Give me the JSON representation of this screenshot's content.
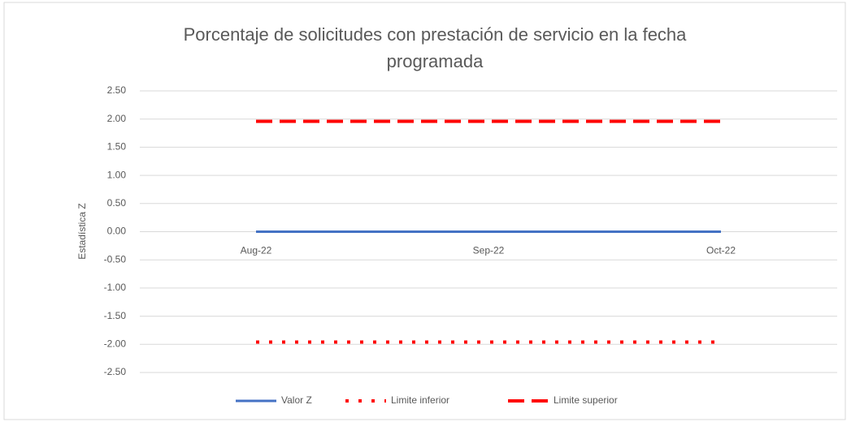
{
  "chart_data": {
    "type": "line",
    "title": "Porcentaje de solicitudes con prestación de servicio en la fecha programada",
    "y_label": "Estadística Z",
    "categories": [
      "Aug-22",
      "Sep-22",
      "Oct-22"
    ],
    "series": [
      {
        "name": "Valor Z",
        "color": "#4472c4",
        "line_style": "solid",
        "values": [
          0,
          0,
          0
        ]
      },
      {
        "name": "Limite inferior",
        "color": "#ff0000",
        "line_style": "dotted",
        "values": [
          -1.96,
          -1.96,
          -1.96
        ]
      },
      {
        "name": "Limite superior",
        "color": "#ff0000",
        "line_style": "dashed",
        "values": [
          1.96,
          1.96,
          1.96
        ]
      }
    ],
    "ylim": [
      -2.5,
      2.5
    ],
    "yticks": [
      {
        "value": -2.5,
        "label": "-2.50"
      },
      {
        "value": -2,
        "label": "-2.00"
      },
      {
        "value": -1.5,
        "label": "-1.50"
      },
      {
        "value": -1,
        "label": "-1.00"
      },
      {
        "value": -0.5,
        "label": "-0.50"
      },
      {
        "value": 0,
        "label": "0.00"
      },
      {
        "value": 0.5,
        "label": "0.50"
      },
      {
        "value": 1,
        "label": "1.00"
      },
      {
        "value": 1.5,
        "label": "1.50"
      },
      {
        "value": 2,
        "label": "2.00"
      },
      {
        "value": 2.5,
        "label": "2.50"
      }
    ],
    "grid": true,
    "legend": "bottom"
  }
}
